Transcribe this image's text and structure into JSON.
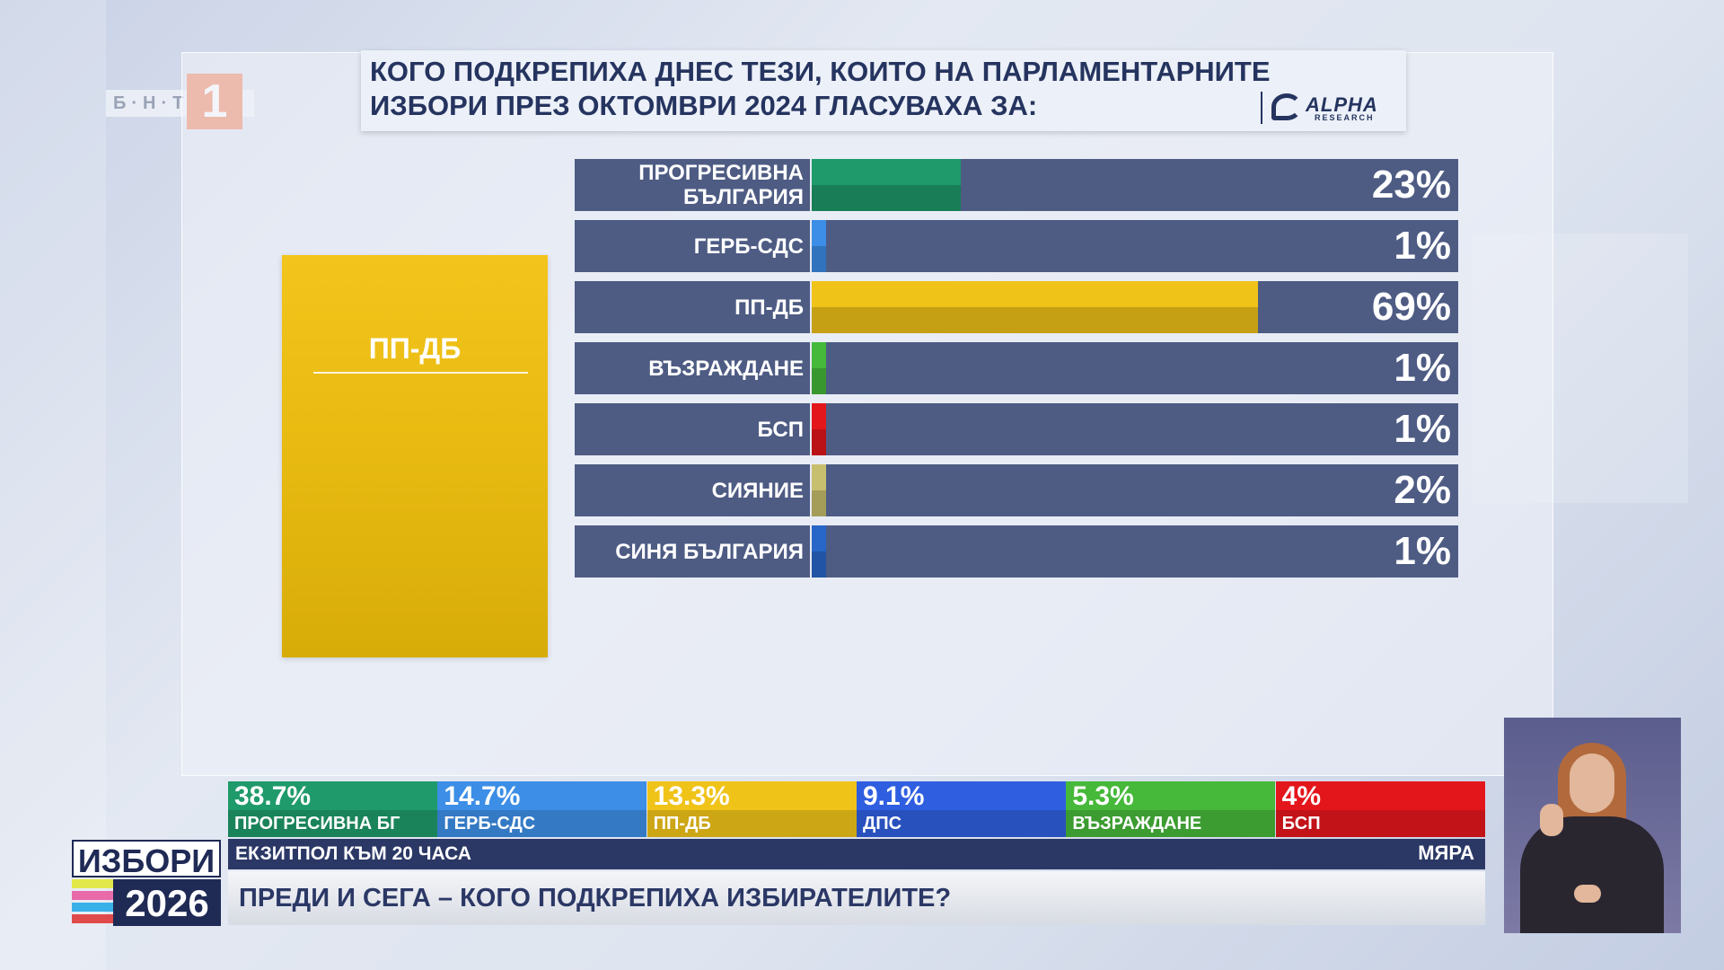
{
  "channel": {
    "name": "Б·Н·Т",
    "number": "1"
  },
  "title": {
    "line1": "КОГО ПОДКРЕПИХА ДНЕС ТЕЗИ, КОИТО НА ПАРЛАМЕНТАРНИТЕ",
    "line2": "ИЗБОРИ ПРЕЗ ОКТОМВРИ 2024 ГЛАСУВАХА ЗА:"
  },
  "source": {
    "name": "ALPHA",
    "sub": "RESEARCH"
  },
  "selected_party": {
    "name": "ПП-ДБ",
    "color": "#f0c319"
  },
  "chart_data": {
    "type": "bar",
    "orientation": "horizontal",
    "title": "КОГО ПОДКРЕПИХА ДНЕС ТЕЗИ, КОИТО НА ПАРЛАМЕНТАРНИТЕ ИЗБОРИ ПРЕЗ ОКТОМВРИ 2024 ГЛАСУВАХА ЗА:",
    "categories": [
      "ПРОГРЕСИВНА БЪЛГАРИЯ",
      "ГЕРБ-СДС",
      "ПП-ДБ",
      "ВЪЗРАЖДАНЕ",
      "БСП",
      "СИЯНИЕ",
      "СИНЯ БЪЛГАРИЯ"
    ],
    "values": [
      23,
      1,
      69,
      1,
      1,
      2,
      1
    ],
    "value_labels": [
      "23%",
      "1%",
      "69%",
      "1%",
      "1%",
      "2%",
      "1%"
    ],
    "colors": [
      "#1f9a6a",
      "#3c8ee6",
      "#f0c319",
      "#46b83a",
      "#e3161c",
      "#c8bf6e",
      "#2866c8"
    ],
    "xlim": [
      0,
      100
    ],
    "grid": false
  },
  "ticker": [
    {
      "value": "38.7%",
      "label": "ПРОГРЕСИВНА БГ",
      "color": "#1f9a6a"
    },
    {
      "value": "14.7%",
      "label": "ГЕРБ-СДС",
      "color": "#3c8ee6"
    },
    {
      "value": "13.3%",
      "label": "ПП-ДБ",
      "color": "#f0c319"
    },
    {
      "value": "9.1%",
      "label": "ДПС",
      "color": "#2f5fe0"
    },
    {
      "value": "5.3%",
      "label": "ВЪЗРАЖДАНЕ",
      "color": "#46b83a"
    },
    {
      "value": "4%",
      "label": "БСП",
      "color": "#e3161c"
    }
  ],
  "info": {
    "left": "ЕКЗИТПОЛ КЪМ 20 ЧАСА",
    "right": "МЯРА"
  },
  "headline": "ПРЕДИ И СЕГА – КОГО ПОДКРЕПИХА ИЗБИРАТЕЛИТЕ?",
  "elections": {
    "word": "ИЗБОРИ",
    "year": "2026"
  }
}
